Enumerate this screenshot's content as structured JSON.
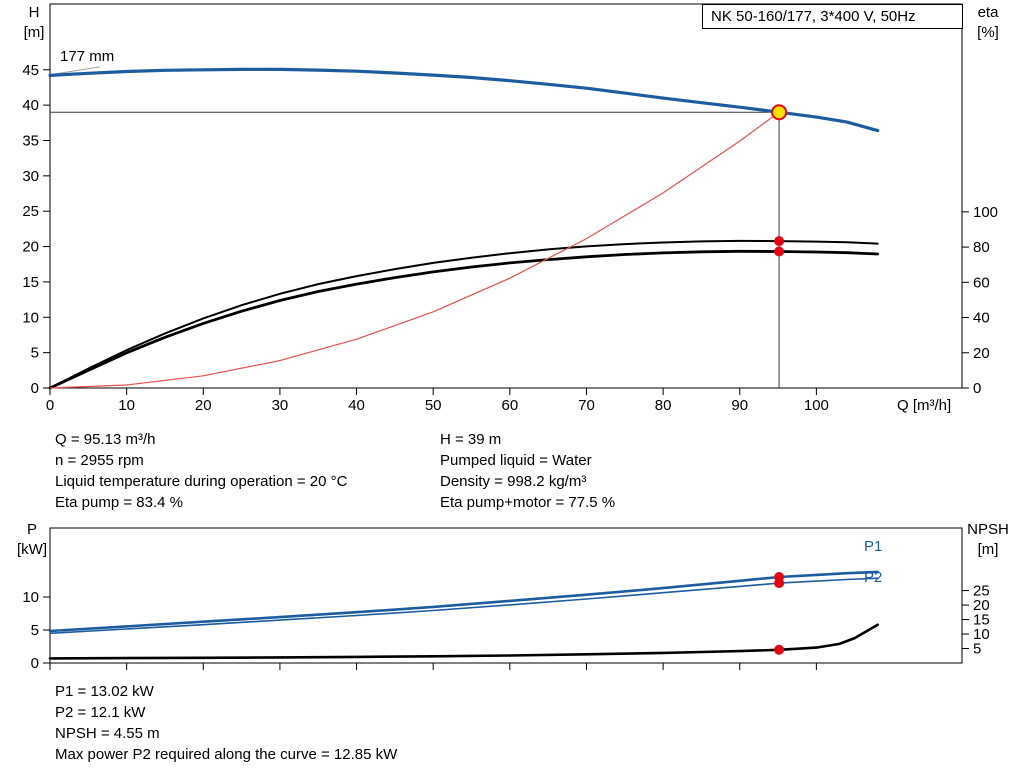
{
  "header": {
    "model_box": "NK 50-160/177, 3*400 V, 50Hz"
  },
  "colors": {
    "curve_blue": "#1d5c9e",
    "curve_black": "#000000",
    "system_curve_red": "#e85050",
    "marker_red": "#e30613",
    "duty_point_yellow": "#ffe100"
  },
  "top_info": {
    "left": [
      "Q = 95.13 m³/h",
      "n = 2955 rpm",
      "Liquid temperature during operation = 20 °C",
      "Eta pump = 83.4 %"
    ],
    "right": [
      "H = 39 m",
      "Pumped liquid = Water",
      "Density = 998.2 kg/m³",
      "Eta pump+motor = 77.5 %"
    ]
  },
  "bottom_info": [
    "P1 = 13.02 kW",
    "P2 = 12.1 kW",
    "NPSH = 4.55 m",
    "Max power P2 required along the curve = 12.85 kW"
  ],
  "chart_data": [
    {
      "type": "line",
      "title": "NK 50-160/177, 3*400 V, 50Hz",
      "axis_labels": {
        "left": [
          "H",
          "[m]"
        ],
        "right": [
          "eta",
          "[%]"
        ],
        "x": "Q [m³/h]"
      },
      "xlim": [
        0,
        119
      ],
      "ylim_left": [
        0,
        54.3
      ],
      "ylim_right": [
        0,
        218
      ],
      "x_ticks": [
        0,
        10,
        20,
        30,
        40,
        50,
        60,
        70,
        80,
        90,
        100
      ],
      "x_tick_labels": true,
      "y_ticks_left": [
        0,
        5,
        10,
        15,
        20,
        25,
        30,
        35,
        40,
        45
      ],
      "y_ticks_right": [
        0,
        20,
        40,
        60,
        80,
        100
      ],
      "grid": false,
      "operating_point": {
        "Q_m3h": 95.13,
        "H_m": 39,
        "eta_pump_pct": 83.4,
        "eta_pump_motor_pct": 77.5
      },
      "annotations": [
        {
          "text": "177 mm",
          "leader": [
            6.5,
            45.4,
            0.6,
            44.4
          ]
        }
      ],
      "guides": [
        {
          "orient": "v",
          "x": 95.13,
          "y1": 0,
          "y2": 39
        },
        {
          "orient": "h",
          "y": 39,
          "x1": 0,
          "x2": 95.13
        }
      ],
      "series": [
        {
          "name": "head-curve",
          "label": "177 mm",
          "axis": "left",
          "color": "#1d5c9e",
          "width": 3.2,
          "points": [
            [
              0,
              44.2
            ],
            [
              5,
              44.5
            ],
            [
              10,
              44.75
            ],
            [
              15,
              44.92
            ],
            [
              20,
              45.0
            ],
            [
              25,
              45.05
            ],
            [
              30,
              45.05
            ],
            [
              35,
              44.95
            ],
            [
              40,
              44.8
            ],
            [
              45,
              44.55
            ],
            [
              50,
              44.25
            ],
            [
              55,
              43.9
            ],
            [
              60,
              43.45
            ],
            [
              65,
              42.95
            ],
            [
              70,
              42.4
            ],
            [
              75,
              41.7
            ],
            [
              80,
              41.0
            ],
            [
              85,
              40.35
            ],
            [
              90,
              39.7
            ],
            [
              95.13,
              39.0
            ],
            [
              100,
              38.3
            ],
            [
              104,
              37.6
            ],
            [
              108,
              36.4
            ]
          ]
        },
        {
          "name": "eta-pump-curve",
          "label": "Eta pump",
          "axis": "right",
          "color": "#000000",
          "width": 2,
          "points": [
            [
              0,
              0
            ],
            [
              5,
              11
            ],
            [
              10,
              21.5
            ],
            [
              15,
              31
            ],
            [
              20,
              39.5
            ],
            [
              25,
              47
            ],
            [
              30,
              53.5
            ],
            [
              35,
              59
            ],
            [
              40,
              63.5
            ],
            [
              45,
              67.5
            ],
            [
              50,
              71
            ],
            [
              55,
              74
            ],
            [
              60,
              76.5
            ],
            [
              65,
              78.7
            ],
            [
              70,
              80.4
            ],
            [
              75,
              81.7
            ],
            [
              80,
              82.6
            ],
            [
              85,
              83.2
            ],
            [
              90,
              83.5
            ],
            [
              95.13,
              83.4
            ],
            [
              100,
              83.1
            ],
            [
              104,
              82.7
            ],
            [
              108,
              82.0
            ]
          ]
        },
        {
          "name": "eta-pump-motor-curve",
          "label": "Eta pump+motor",
          "axis": "right",
          "color": "#000000",
          "width": 2.8,
          "points": [
            [
              0,
              0
            ],
            [
              5,
              10
            ],
            [
              10,
              20
            ],
            [
              15,
              28.8
            ],
            [
              20,
              36.7
            ],
            [
              25,
              43.6
            ],
            [
              30,
              49.7
            ],
            [
              35,
              54.8
            ],
            [
              40,
              59
            ],
            [
              45,
              62.7
            ],
            [
              50,
              65.9
            ],
            [
              55,
              68.7
            ],
            [
              60,
              71
            ],
            [
              65,
              72.9
            ],
            [
              70,
              74.5
            ],
            [
              75,
              75.8
            ],
            [
              80,
              76.7
            ],
            [
              85,
              77.3
            ],
            [
              90,
              77.6
            ],
            [
              95.13,
              77.5
            ],
            [
              100,
              77.2
            ],
            [
              104,
              76.8
            ],
            [
              108,
              76.1
            ]
          ]
        },
        {
          "name": "system-curve",
          "label": "System curve",
          "axis": "left",
          "color": "#e85050",
          "width": 1.2,
          "points": [
            [
              0,
              0
            ],
            [
              10,
              0.43
            ],
            [
              20,
              1.72
            ],
            [
              30,
              3.88
            ],
            [
              40,
              6.9
            ],
            [
              50,
              10.78
            ],
            [
              60,
              15.52
            ],
            [
              70,
              21.12
            ],
            [
              80,
              27.59
            ],
            [
              90,
              34.92
            ],
            [
              95.13,
              39.0
            ]
          ]
        }
      ],
      "markers": [
        {
          "name": "duty-point",
          "axis": "left",
          "x": 95.13,
          "y": 39,
          "r": 7,
          "fill": "#ffe100",
          "stroke": "#e30613"
        },
        {
          "name": "eta-pump-point",
          "axis": "right",
          "x": 95.13,
          "y": 83.4,
          "r": 5,
          "fill": "#e30613"
        },
        {
          "name": "eta-pump-motor-point",
          "axis": "right",
          "x": 95.13,
          "y": 77.5,
          "r": 5,
          "fill": "#e30613"
        }
      ]
    },
    {
      "type": "line",
      "title": "",
      "axis_labels": {
        "left": [
          "P",
          "[kW]"
        ],
        "right": [
          "NPSH",
          "[m]"
        ],
        "x": ""
      },
      "xlim": [
        0,
        119
      ],
      "ylim_left": [
        0,
        20.45
      ],
      "ylim_right": [
        0,
        46.6
      ],
      "x_ticks": [
        0,
        10,
        20,
        30,
        40,
        50,
        60,
        70,
        80,
        90,
        100
      ],
      "x_tick_labels": false,
      "y_ticks_left": [
        0,
        5,
        10
      ],
      "y_ticks_right": [
        5,
        10,
        15,
        20,
        25
      ],
      "grid": false,
      "operating_point": {
        "Q_m3h": 95.13,
        "P1_kW": 13.02,
        "P2_kW": 12.1,
        "NPSH_m": 4.55
      },
      "annotations": [],
      "guides": [],
      "series": [
        {
          "name": "p1-curve",
          "label": "P1",
          "axis": "left",
          "color": "#1d5c9e",
          "width": 2.6,
          "points": [
            [
              0,
              4.85
            ],
            [
              10,
              5.55
            ],
            [
              20,
              6.25
            ],
            [
              30,
              6.95
            ],
            [
              40,
              7.7
            ],
            [
              50,
              8.5
            ],
            [
              60,
              9.4
            ],
            [
              70,
              10.35
            ],
            [
              80,
              11.35
            ],
            [
              90,
              12.45
            ],
            [
              95.13,
              13.02
            ],
            [
              100,
              13.35
            ],
            [
              104,
              13.6
            ],
            [
              108,
              13.8
            ]
          ]
        },
        {
          "name": "p2-curve",
          "label": "P2",
          "axis": "left",
          "color": "#1d5c9e",
          "width": 1.6,
          "points": [
            [
              0,
              4.5
            ],
            [
              10,
              5.15
            ],
            [
              20,
              5.8
            ],
            [
              30,
              6.5
            ],
            [
              40,
              7.2
            ],
            [
              50,
              7.95
            ],
            [
              60,
              8.8
            ],
            [
              70,
              9.7
            ],
            [
              80,
              10.65
            ],
            [
              90,
              11.6
            ],
            [
              95.13,
              12.1
            ],
            [
              100,
              12.4
            ],
            [
              104,
              12.65
            ],
            [
              108,
              12.85
            ]
          ]
        },
        {
          "name": "npsh-curve",
          "label": "NPSH",
          "axis": "right",
          "color": "#000000",
          "width": 2.6,
          "points": [
            [
              0,
              1.6
            ],
            [
              10,
              1.7
            ],
            [
              20,
              1.8
            ],
            [
              30,
              1.95
            ],
            [
              40,
              2.1
            ],
            [
              50,
              2.3
            ],
            [
              60,
              2.6
            ],
            [
              70,
              3.0
            ],
            [
              80,
              3.5
            ],
            [
              85,
              3.8
            ],
            [
              90,
              4.1
            ],
            [
              95.13,
              4.55
            ],
            [
              100,
              5.3
            ],
            [
              103,
              6.6
            ],
            [
              105,
              8.6
            ],
            [
              108,
              13.2
            ]
          ]
        }
      ],
      "markers": [
        {
          "name": "p1-point",
          "axis": "left",
          "x": 95.13,
          "y": 13.02,
          "r": 5,
          "fill": "#e30613"
        },
        {
          "name": "p2-point",
          "axis": "left",
          "x": 95.13,
          "y": 12.1,
          "r": 5,
          "fill": "#e30613"
        },
        {
          "name": "npsh-point",
          "axis": "right",
          "x": 95.13,
          "y": 4.55,
          "r": 5,
          "fill": "#e30613"
        }
      ]
    }
  ]
}
